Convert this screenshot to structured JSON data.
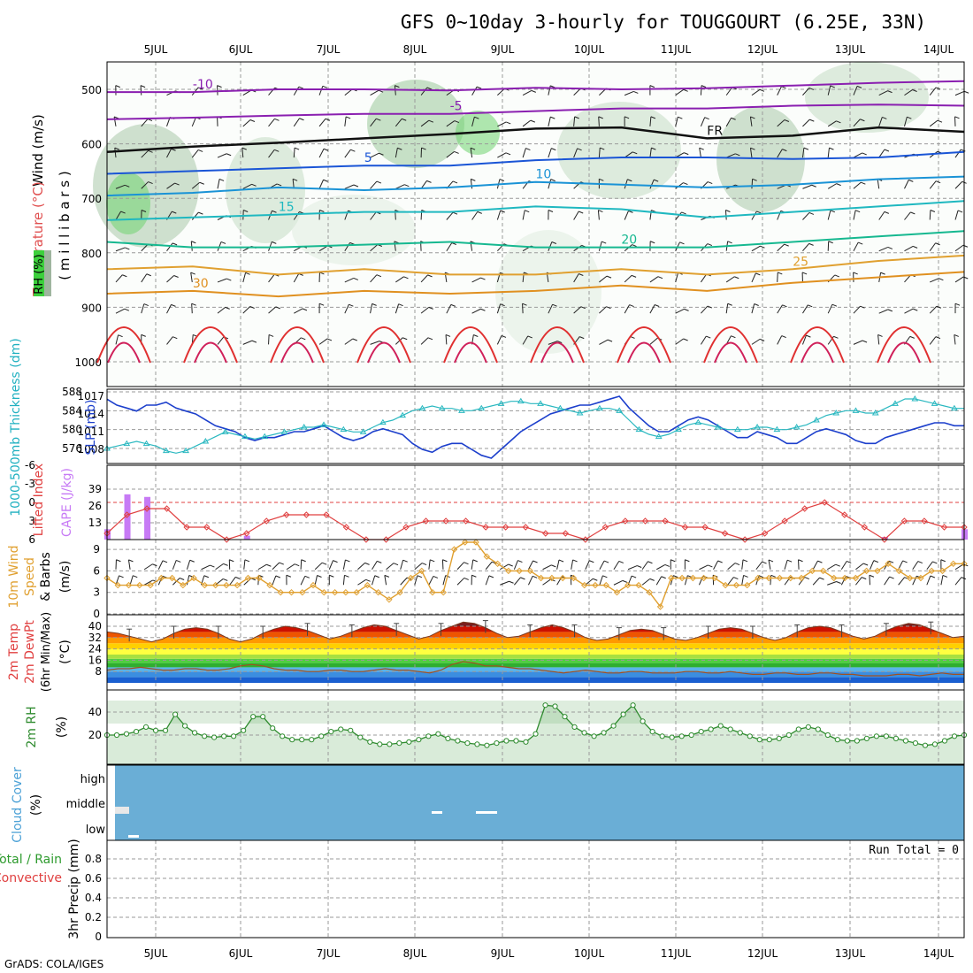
{
  "title": "GFS 0~10day 3-hourly for TOUGGOURT (6.25E, 33N)",
  "credit": "GrADS: COLA/IGES",
  "date_labels": [
    "5JUL",
    "6JUL",
    "7JUL",
    "8JUL",
    "9JUL",
    "10JUL",
    "11JUL",
    "12JUL",
    "13JUL",
    "14JUL"
  ],
  "colors": {
    "grid": "#9a9a9a",
    "frame": "#000000",
    "cloud_fill": "#6aaed6",
    "rh_fill": "#e6f3e6",
    "rh_line": "#2e8b2e",
    "cape_bar": "#c77af5",
    "li_line": "#e04040",
    "wind_line": "#e0a030",
    "slp_line": "#1c3fcc",
    "thick_line": "#2ab8c0"
  },
  "panels": {
    "upper": {
      "labels": {
        "wind": "Wind (m/s)",
        "temp": "Temperature (°C)",
        "rh": "RH (%)",
        "pressure": "( m i l l i b a r s )"
      },
      "pressure_ticks": [
        "500",
        "600",
        "700",
        "800",
        "900",
        "1000"
      ],
      "temperature_contours": [
        {
          "label": "-10",
          "pressure": [
            505,
            505,
            500,
            500,
            502,
            497,
            500,
            498,
            493,
            488,
            485
          ]
        },
        {
          "label": "-5",
          "pressure": [
            555,
            552,
            548,
            545,
            545,
            540,
            535,
            535,
            530,
            528,
            530
          ]
        },
        {
          "label": "FR",
          "pressure": [
            615,
            605,
            598,
            590,
            582,
            572,
            570,
            590,
            585,
            570,
            578
          ]
        },
        {
          "label": "5",
          "pressure": [
            655,
            650,
            645,
            640,
            640,
            630,
            625,
            625,
            628,
            625,
            615
          ]
        },
        {
          "label": "10",
          "pressure": [
            695,
            690,
            680,
            685,
            680,
            670,
            675,
            680,
            675,
            665,
            660
          ]
        },
        {
          "label": "15",
          "pressure": [
            740,
            735,
            730,
            725,
            725,
            715,
            720,
            735,
            725,
            715,
            705
          ]
        },
        {
          "label": "20",
          "pressure": [
            780,
            790,
            790,
            785,
            780,
            790,
            790,
            790,
            780,
            770,
            760
          ]
        },
        {
          "label": "25",
          "pressure": [
            830,
            825,
            840,
            830,
            840,
            840,
            830,
            840,
            830,
            815,
            805
          ]
        },
        {
          "label": "30",
          "pressure": [
            875,
            870,
            880,
            870,
            875,
            870,
            860,
            870,
            855,
            845,
            835
          ]
        }
      ],
      "contour_labels": [
        "-10",
        "-5",
        "FR",
        "5",
        "10",
        "15",
        "20",
        "25",
        "30"
      ]
    },
    "slp": {
      "labels": {
        "thickness": "1000-500mb Thickness (dm)",
        "slp": "SLP (mb)"
      },
      "left_ticks": [
        "588",
        "584",
        "580",
        "576"
      ],
      "right_ticks": [
        "1017",
        "1014",
        "1011",
        "1008"
      ]
    },
    "cape": {
      "labels": {
        "li": "Lifted Index",
        "cape": "CAPE (J/kg)"
      },
      "left_ticks": [
        "-6",
        "-3",
        "0",
        "3",
        "6"
      ],
      "right_ticks": [
        "39",
        "26",
        "13"
      ]
    },
    "wind10m": {
      "labels": {
        "a": "10m Wind",
        "b": "Speed",
        "c": "& Barbs",
        "unit": "(m/s)"
      },
      "ticks": [
        "9",
        "6",
        "3",
        "0"
      ]
    },
    "temp2m": {
      "labels": {
        "a": "2m Temp",
        "b": "2m DewPt",
        "c": "(6hr Min/Max)",
        "unit": "(°C)"
      },
      "ticks": [
        "40",
        "32",
        "24",
        "16",
        "8"
      ]
    },
    "rh2m": {
      "labels": {
        "a": "2m RH",
        "unit": "(%)"
      },
      "ticks": [
        "40",
        "20"
      ]
    },
    "cloud": {
      "labels": {
        "a": "Cloud Cover",
        "unit": "(%)"
      },
      "levels": [
        "high",
        "middle",
        "low"
      ]
    },
    "precip": {
      "labels": {
        "a": "Total / Rain",
        "b": "Convective",
        "c": "3hr Precip (mm)"
      },
      "ticks": [
        "0.8",
        "0.6",
        "0.4",
        "0.2",
        "0"
      ],
      "run_total": "Run Total = 0"
    }
  },
  "chart_data": [
    {
      "type": "line",
      "title": "1000-500mb Thickness and SLP",
      "series": [
        {
          "name": "SLP (mb)",
          "axis": "right",
          "values": [
            1016.5,
            1015.5,
            1015,
            1014.5,
            1015.5,
            1015.5,
            1016,
            1015,
            1014.5,
            1014,
            1013,
            1012,
            1011.5,
            1011,
            1010,
            1009.5,
            1010,
            1010,
            1010.5,
            1011,
            1011,
            1011.5,
            1012,
            1011,
            1010,
            1009.5,
            1010,
            1011,
            1011.5,
            1011,
            1010.5,
            1009,
            1008,
            1007.5,
            1008.5,
            1009,
            1009,
            1008,
            1007,
            1006.5,
            1008,
            1009.5,
            1011,
            1012,
            1013,
            1014,
            1014.5,
            1015,
            1015.5,
            1015.5,
            1016,
            1016.5,
            1017,
            1015,
            1013.5,
            1012,
            1011,
            1011,
            1012,
            1013,
            1013.5,
            1013,
            1012,
            1011,
            1010,
            1010,
            1011,
            1010.5,
            1010,
            1009,
            1009,
            1010,
            1011,
            1011.5,
            1011,
            1010.5,
            1009.5,
            1009,
            1009,
            1010,
            1010.5,
            1011,
            1011.5,
            1012,
            1012.5,
            1012.5,
            1012,
            1012
          ]
        },
        {
          "name": "Thickness (dm)",
          "axis": "left",
          "values": [
            576,
            576.5,
            577,
            577.5,
            577,
            576.5,
            575.5,
            575,
            575.5,
            576.5,
            577.5,
            578.5,
            579.5,
            579,
            578.5,
            578,
            578.5,
            579,
            579.5,
            580,
            580.5,
            580.5,
            581,
            580.5,
            580,
            579.5,
            579.5,
            580.5,
            581.5,
            582,
            583,
            584,
            584.5,
            585,
            584.5,
            584.5,
            584,
            584,
            584.5,
            585,
            585.5,
            586,
            586,
            585.5,
            585.5,
            585,
            584.5,
            584,
            583.5,
            584,
            584.5,
            584.5,
            584,
            582,
            580,
            579,
            578.5,
            579,
            580,
            581,
            581.5,
            581,
            580.5,
            580,
            580,
            580,
            580.5,
            580.5,
            580,
            580,
            580.5,
            581,
            582,
            583,
            583.5,
            584,
            584,
            583.5,
            583.5,
            584.5,
            585.5,
            586.5,
            586.5,
            586,
            585.5,
            585,
            584.5,
            584.5
          ]
        }
      ]
    },
    {
      "type": "bar",
      "title": "CAPE / Lifted Index",
      "series": [
        {
          "name": "CAPE (J/kg)",
          "values": [
            8,
            35,
            33,
            null,
            null,
            null,
            null,
            3,
            null,
            null,
            null,
            null,
            null,
            null,
            null,
            null,
            null,
            null,
            null,
            null,
            null,
            null,
            null,
            null,
            null,
            null,
            null,
            null,
            null,
            null,
            null,
            null,
            null,
            null,
            null,
            null,
            null,
            null,
            null,
            2,
            null,
            null,
            null,
            8
          ]
        },
        {
          "name": "Lifted Index",
          "values": [
            5,
            2,
            1,
            1,
            4,
            4,
            6,
            5,
            3,
            2,
            2,
            2,
            4,
            6,
            6,
            4,
            3,
            3,
            3,
            4,
            4,
            4,
            5,
            5,
            6,
            4,
            3,
            3,
            3,
            4,
            4,
            5,
            6,
            5,
            3,
            1,
            0,
            2,
            4,
            6,
            3,
            3,
            4,
            4
          ]
        }
      ]
    },
    {
      "type": "line",
      "title": "10m Wind Speed (m/s)",
      "series": [
        {
          "name": "Wind Speed",
          "values": [
            5,
            4,
            4,
            4,
            4,
            5,
            5,
            4,
            5,
            4,
            4,
            4,
            4,
            5,
            5,
            4,
            3,
            3,
            3,
            4,
            3,
            3,
            3,
            3,
            4,
            3,
            2,
            3,
            5,
            6,
            3,
            3,
            9,
            10,
            10,
            8,
            7,
            6,
            6,
            6,
            5,
            5,
            5,
            5,
            4,
            4,
            4,
            3,
            4,
            4,
            3,
            1,
            5,
            5,
            5,
            5,
            5,
            4,
            4,
            4,
            5,
            5,
            5,
            5,
            5,
            6,
            6,
            5,
            5,
            5,
            6,
            6,
            7,
            6,
            5,
            5,
            6,
            6,
            7,
            7
          ]
        }
      ]
    },
    {
      "type": "area",
      "title": "2m Temp / DewPt (°C)",
      "series": [
        {
          "name": "2m Temp",
          "values": [
            36,
            35,
            33,
            31,
            29,
            31,
            35,
            38,
            39,
            38,
            35,
            31,
            29,
            31,
            35,
            38,
            40,
            39,
            37,
            34,
            31,
            33,
            36,
            39,
            41,
            40,
            37,
            34,
            31,
            33,
            37,
            40,
            43,
            42,
            39,
            35,
            32,
            33,
            36,
            39,
            41,
            39,
            36,
            32,
            30,
            31,
            34,
            37,
            38,
            37,
            34,
            31,
            30,
            32,
            35,
            38,
            39,
            38,
            35,
            32,
            30,
            32,
            36,
            39,
            40,
            39,
            36,
            33,
            31,
            33,
            37,
            40,
            42,
            41,
            38,
            35,
            32,
            33
          ]
        },
        {
          "name": "2m DewPt",
          "values": [
            9,
            10,
            10,
            11,
            10,
            9,
            9,
            10,
            10,
            9,
            9,
            10,
            12,
            13,
            12,
            10,
            9,
            9,
            8,
            8,
            9,
            9,
            8,
            8,
            9,
            10,
            9,
            9,
            8,
            7,
            9,
            13,
            15,
            14,
            12,
            12,
            11,
            10,
            10,
            9,
            8,
            7,
            8,
            9,
            8,
            7,
            7,
            8,
            8,
            7,
            7,
            7,
            8,
            8,
            7,
            7,
            8,
            7,
            6,
            6,
            7,
            7,
            6,
            6,
            7,
            7,
            6,
            6,
            5,
            5,
            5,
            6,
            6,
            5,
            6,
            7,
            6,
            6
          ]
        }
      ]
    },
    {
      "type": "area",
      "title": "2m RH (%)",
      "series": [
        {
          "name": "2m RH",
          "values": [
            20,
            20,
            21,
            23,
            27,
            24,
            24,
            38,
            28,
            22,
            19,
            18,
            19,
            19,
            24,
            36,
            36,
            26,
            19,
            16,
            16,
            16,
            19,
            23,
            25,
            24,
            18,
            14,
            12,
            12,
            13,
            14,
            16,
            19,
            21,
            17,
            15,
            13,
            12,
            11,
            13,
            15,
            15,
            14,
            21,
            46,
            45,
            36,
            27,
            22,
            19,
            22,
            28,
            38,
            46,
            32,
            23,
            19,
            18,
            19,
            20,
            23,
            25,
            28,
            25,
            22,
            19,
            16,
            16,
            17,
            20,
            25,
            27,
            25,
            20,
            16,
            15,
            15,
            17,
            19,
            19,
            17,
            15,
            13,
            11,
            12,
            15,
            19,
            20
          ]
        }
      ]
    },
    {
      "type": "bar",
      "title": "3hr Precip (mm)",
      "values": [],
      "ylim": [
        0,
        0.9
      ]
    }
  ]
}
